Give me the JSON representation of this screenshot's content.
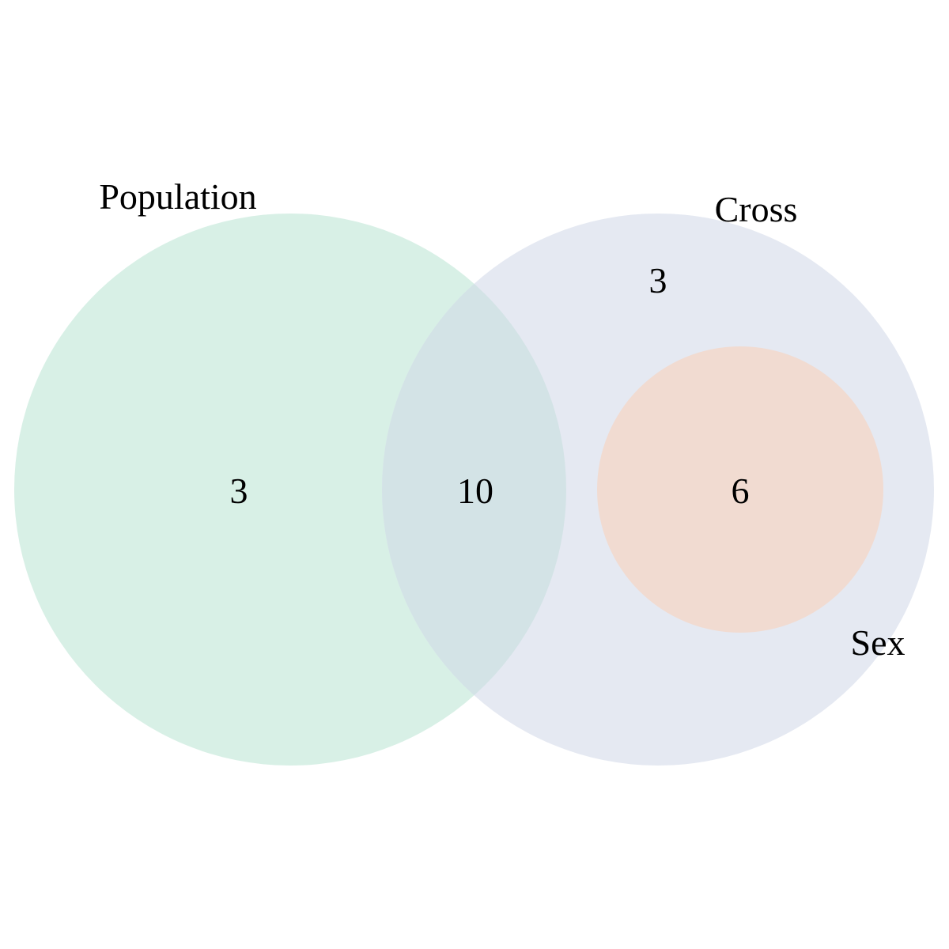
{
  "diagram": {
    "type": "venn",
    "sets": [
      {
        "id": "population",
        "label": "Population",
        "color": "#d8f0e6"
      },
      {
        "id": "cross",
        "label": "Cross",
        "color": "#e5e9f2"
      },
      {
        "id": "sex",
        "label": "Sex",
        "color": "#f1dbd1"
      }
    ],
    "overlap_color": "#d3e3e6",
    "regions": [
      {
        "id": "population-only",
        "sets": [
          "population"
        ],
        "count": "3"
      },
      {
        "id": "population-and-cross",
        "sets": [
          "population",
          "cross"
        ],
        "count": "10"
      },
      {
        "id": "cross-only",
        "sets": [
          "cross"
        ],
        "count": "3"
      },
      {
        "id": "cross-and-sex",
        "sets": [
          "cross",
          "sex"
        ],
        "count": "6"
      }
    ]
  }
}
